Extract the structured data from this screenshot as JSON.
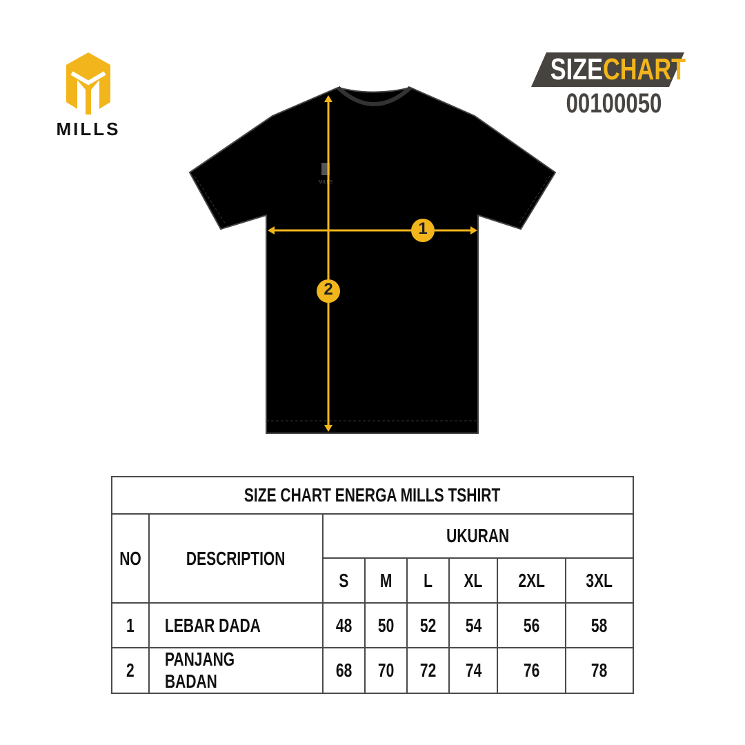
{
  "brand": {
    "name": "MILLS",
    "color": "#f2b51c"
  },
  "badge": {
    "word1": "SIZE",
    "word2": "CHART",
    "code": "00100050",
    "bg": "#47443f"
  },
  "shirt": {
    "arrow_color": "#f2b51c",
    "markers": [
      "1",
      "2"
    ]
  },
  "table": {
    "title": "SIZE CHART ENERGA MILLS TSHIRT",
    "col_no": "NO",
    "col_desc": "DESCRIPTION",
    "col_group": "UKURAN",
    "sizes": [
      "S",
      "M",
      "L",
      "XL",
      "2XL",
      "3XL"
    ],
    "rows": [
      {
        "no": "1",
        "desc": "LEBAR DADA",
        "values": [
          "48",
          "50",
          "52",
          "54",
          "56",
          "58"
        ]
      },
      {
        "no": "2",
        "desc": "PANJANG BADAN",
        "values": [
          "68",
          "70",
          "72",
          "74",
          "76",
          "78"
        ]
      }
    ]
  }
}
